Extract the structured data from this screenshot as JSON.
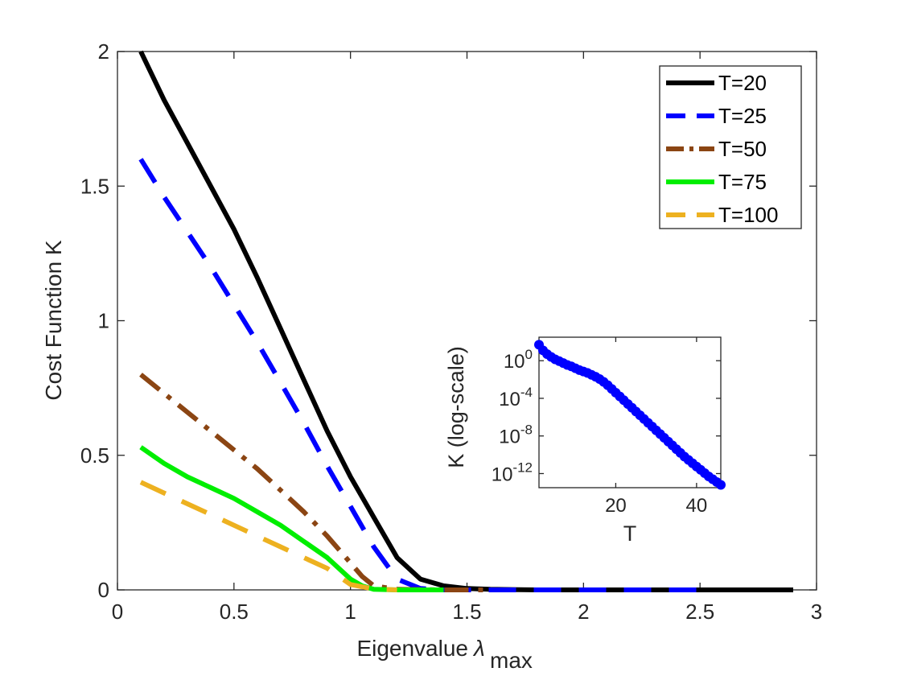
{
  "chart_data": {
    "main": {
      "type": "line",
      "xlabel": "Eigenvalue",
      "xlabel_symbol": "λ",
      "xlabel_subscript": "max",
      "ylabel": "Cost Function K",
      "xlim": [
        0,
        3
      ],
      "ylim": [
        0,
        2
      ],
      "xticks": [
        0,
        0.5,
        1,
        1.5,
        2,
        2.5,
        3
      ],
      "xtick_labels": [
        "0",
        "0.5",
        "1",
        "1.5",
        "2",
        "2.5",
        "3"
      ],
      "yticks": [
        0,
        0.5,
        1,
        1.5,
        2
      ],
      "ytick_labels": [
        "0",
        "0.5",
        "1",
        "1.5",
        "2"
      ],
      "legend_position": "top-right",
      "series": [
        {
          "name": "T=20",
          "color": "#000000",
          "style": "solid",
          "x": [
            0.1,
            0.2,
            0.3,
            0.4,
            0.5,
            0.6,
            0.7,
            0.8,
            0.9,
            1.0,
            1.1,
            1.2,
            1.3,
            1.4,
            1.5,
            1.6,
            1.8,
            2.0,
            2.2,
            2.4,
            2.6,
            2.8,
            2.9
          ],
          "y": [
            2.0,
            1.82,
            1.66,
            1.5,
            1.34,
            1.16,
            0.97,
            0.78,
            0.59,
            0.42,
            0.27,
            0.12,
            0.04,
            0.015,
            0.005,
            0.002,
            0.0,
            0.0,
            0.0,
            0.0,
            0.0,
            0.0,
            0.0
          ]
        },
        {
          "name": "T=25",
          "color": "#0000ff",
          "style": "dashed",
          "x": [
            0.1,
            0.2,
            0.3,
            0.4,
            0.5,
            0.6,
            0.7,
            0.8,
            0.9,
            1.0,
            1.1,
            1.2,
            1.3,
            1.4,
            1.6,
            1.8,
            2.0,
            2.2,
            2.5
          ],
          "y": [
            1.6,
            1.46,
            1.33,
            1.2,
            1.06,
            0.92,
            0.77,
            0.62,
            0.46,
            0.31,
            0.16,
            0.04,
            0.005,
            0.0,
            0.0,
            0.0,
            0.0,
            0.0,
            0.0
          ]
        },
        {
          "name": "T=50",
          "color": "#8b4513",
          "style": "dashdot",
          "x": [
            0.1,
            0.2,
            0.3,
            0.4,
            0.5,
            0.6,
            0.7,
            0.8,
            0.9,
            1.0,
            1.05,
            1.1,
            1.2,
            1.4,
            1.6
          ],
          "y": [
            0.8,
            0.73,
            0.66,
            0.59,
            0.52,
            0.45,
            0.37,
            0.29,
            0.2,
            0.1,
            0.05,
            0.015,
            0.002,
            0.0,
            0.0
          ]
        },
        {
          "name": "T=75",
          "color": "#00ee00",
          "style": "solid",
          "x": [
            0.1,
            0.2,
            0.3,
            0.4,
            0.5,
            0.6,
            0.7,
            0.8,
            0.9,
            1.0,
            1.05,
            1.1,
            1.2,
            1.3,
            1.4
          ],
          "y": [
            0.53,
            0.47,
            0.42,
            0.38,
            0.34,
            0.29,
            0.24,
            0.18,
            0.12,
            0.04,
            0.015,
            0.002,
            0.0,
            0.0,
            0.0
          ]
        },
        {
          "name": "T=100",
          "color": "#edb120",
          "style": "dashed",
          "x": [
            0.1,
            0.2,
            0.3,
            0.4,
            0.5,
            0.6,
            0.7,
            0.8,
            0.9,
            1.0,
            1.1,
            1.2
          ],
          "y": [
            0.4,
            0.36,
            0.32,
            0.28,
            0.24,
            0.2,
            0.16,
            0.12,
            0.08,
            0.02,
            0.003,
            0.0
          ]
        }
      ]
    },
    "inset": {
      "type": "scatter",
      "xlabel": "T",
      "ylabel": "K (log-scale)",
      "xlim": [
        1,
        46
      ],
      "ylim_log10": [
        -13.5,
        2.5
      ],
      "xticks": [
        20,
        40
      ],
      "xtick_labels": [
        "20",
        "40"
      ],
      "yticks": [
        {
          "value_log10": 0,
          "base": "10",
          "exp": "0"
        },
        {
          "value_log10": -4,
          "base": "10",
          "exp": "-4"
        },
        {
          "value_log10": -8,
          "base": "10",
          "exp": "-8"
        },
        {
          "value_log10": -12,
          "base": "10",
          "exp": "-12"
        }
      ],
      "color": "#0000ff",
      "x": [
        1,
        2,
        3,
        4,
        5,
        6,
        7,
        8,
        9,
        10,
        11,
        12,
        13,
        14,
        15,
        16,
        17,
        18,
        19,
        20,
        21,
        22,
        23,
        24,
        25,
        26,
        27,
        28,
        29,
        30,
        31,
        32,
        33,
        34,
        35,
        36,
        37,
        38,
        39,
        40,
        41,
        42,
        43,
        44,
        45,
        46
      ],
      "y_log10": [
        1.7,
        1.1,
        0.7,
        0.4,
        0.15,
        -0.05,
        -0.25,
        -0.45,
        -0.6,
        -0.8,
        -1.0,
        -1.15,
        -1.3,
        -1.5,
        -1.7,
        -1.95,
        -2.25,
        -2.6,
        -3.0,
        -3.4,
        -3.8,
        -4.2,
        -4.6,
        -5.0,
        -5.4,
        -5.8,
        -6.2,
        -6.6,
        -7.0,
        -7.4,
        -7.8,
        -8.2,
        -8.6,
        -9.0,
        -9.4,
        -9.8,
        -10.2,
        -10.55,
        -10.9,
        -11.25,
        -11.6,
        -11.95,
        -12.3,
        -12.6,
        -12.9,
        -13.2
      ]
    }
  }
}
